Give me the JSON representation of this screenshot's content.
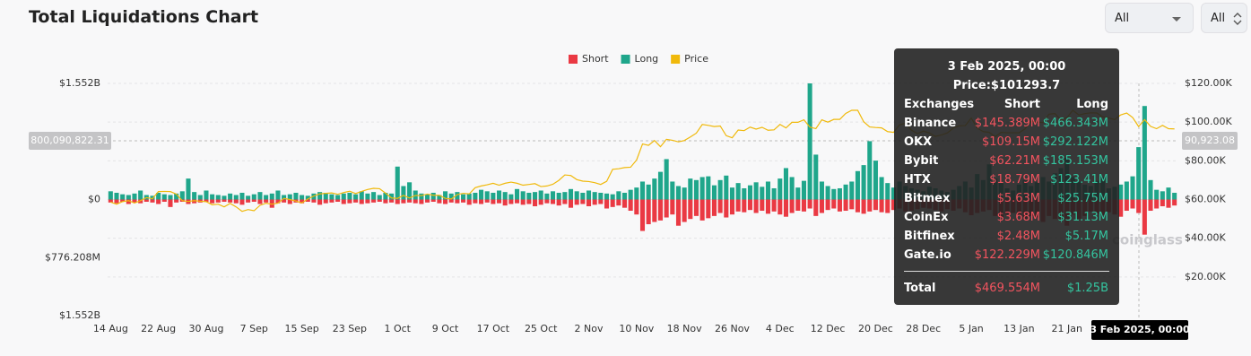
{
  "header": {
    "title": "Total Liquidations Chart",
    "filters": [
      "All",
      "All"
    ]
  },
  "chart_data": {
    "type": "bar",
    "categories": [
      "14 Aug",
      null,
      null,
      null,
      null,
      null,
      null,
      null,
      "22 Aug",
      null,
      null,
      null,
      null,
      null,
      null,
      null,
      "30 Aug",
      null,
      null,
      null,
      null,
      null,
      null,
      null,
      "7 Sep",
      null,
      null,
      null,
      null,
      null,
      null,
      null,
      "15 Sep",
      null,
      null,
      null,
      null,
      null,
      null,
      null,
      "23 Sep",
      null,
      null,
      null,
      null,
      null,
      null,
      null,
      "1 Oct",
      null,
      null,
      null,
      null,
      null,
      null,
      null,
      "9 Oct",
      null,
      null,
      null,
      null,
      null,
      null,
      null,
      "17 Oct",
      null,
      null,
      null,
      null,
      null,
      null,
      null,
      "25 Oct",
      null,
      null,
      null,
      null,
      null,
      null,
      null,
      "2 Nov",
      null,
      null,
      null,
      null,
      null,
      null,
      null,
      "10 Nov",
      null,
      null,
      null,
      null,
      null,
      null,
      null,
      "18 Nov",
      null,
      null,
      null,
      null,
      null,
      null,
      null,
      "26 Nov",
      null,
      null,
      null,
      null,
      null,
      null,
      null,
      "4 Dec",
      null,
      null,
      null,
      null,
      null,
      null,
      null,
      "12 Dec",
      null,
      null,
      null,
      null,
      null,
      null,
      null,
      "20 Dec",
      null,
      null,
      null,
      null,
      null,
      null,
      null,
      "28 Dec",
      null,
      null,
      null,
      null,
      null,
      null,
      null,
      "5 Jan",
      null,
      null,
      null,
      null,
      null,
      null,
      null,
      "13 Jan",
      null,
      null,
      null,
      null,
      null,
      null,
      null,
      "21 Jan",
      null,
      null,
      null,
      null,
      null,
      null,
      null,
      null,
      null,
      null,
      null,
      null,
      null,
      null,
      null,
      null,
      null,
      null
    ],
    "series": [
      {
        "name": "Short",
        "color": "#ea3943",
        "type": "bar",
        "values": [
          -40000000.0,
          -50000000.0,
          -30000000.0,
          -60000000.0,
          -40000000.0,
          -50000000.0,
          -30000000.0,
          -40000000.0,
          -60000000.0,
          -30000000.0,
          -100000000.0,
          -40000000.0,
          -30000000.0,
          -60000000.0,
          -50000000.0,
          -40000000.0,
          -30000000.0,
          -50000000.0,
          -40000000.0,
          -30000000.0,
          -40000000.0,
          -50000000.0,
          -70000000.0,
          -40000000.0,
          -30000000.0,
          -60000000.0,
          -40000000.0,
          -110000000.0,
          -50000000.0,
          -40000000.0,
          -60000000.0,
          -40000000.0,
          -50000000.0,
          -30000000.0,
          -40000000.0,
          -70000000.0,
          -50000000.0,
          -40000000.0,
          -30000000.0,
          -60000000.0,
          -50000000.0,
          -40000000.0,
          -60000000.0,
          -50000000.0,
          -40000000.0,
          -30000000.0,
          -50000000.0,
          -40000000.0,
          -60000000.0,
          -50000000.0,
          -40000000.0,
          -50000000.0,
          -60000000.0,
          -40000000.0,
          -30000000.0,
          -50000000.0,
          -60000000.0,
          -40000000.0,
          -50000000.0,
          -40000000.0,
          -70000000.0,
          -50000000.0,
          -60000000.0,
          -40000000.0,
          -60000000.0,
          -50000000.0,
          -80000000.0,
          -60000000.0,
          -50000000.0,
          -70000000.0,
          -60000000.0,
          -90000000.0,
          -70000000.0,
          -50000000.0,
          -60000000.0,
          -80000000.0,
          -60000000.0,
          -110000000.0,
          -70000000.0,
          -60000000.0,
          -90000000.0,
          -70000000.0,
          -60000000.0,
          -120000000.0,
          -100000000.0,
          -80000000.0,
          -110000000.0,
          -150000000.0,
          -200000000.0,
          -420000000.0,
          -330000000.0,
          -300000000.0,
          -280000000.0,
          -240000000.0,
          -200000000.0,
          -350000000.0,
          -300000000.0,
          -260000000.0,
          -220000000.0,
          -280000000.0,
          -250000000.0,
          -220000000.0,
          -180000000.0,
          -240000000.0,
          -200000000.0,
          -160000000.0,
          -170000000.0,
          -140000000.0,
          -180000000.0,
          -150000000.0,
          -190000000.0,
          -160000000.0,
          -200000000.0,
          -230000000.0,
          -180000000.0,
          -150000000.0,
          -160000000.0,
          -120000000.0,
          -220000000.0,
          -180000000.0,
          -140000000.0,
          -120000000.0,
          -160000000.0,
          -150000000.0,
          -130000000.0,
          -170000000.0,
          -190000000.0,
          -160000000.0,
          -140000000.0,
          -170000000.0,
          -180000000.0,
          -140000000.0,
          -120000000.0,
          -160000000.0,
          -150000000.0,
          -130000000.0,
          -110000000.0,
          -120000000.0,
          -140000000.0,
          -160000000.0,
          -130000000.0,
          -150000000.0,
          -120000000.0,
          -170000000.0,
          -210000000.0,
          -180000000.0,
          -160000000.0,
          -140000000.0,
          -220000000.0,
          -240000000.0,
          -200000000.0,
          -180000000.0,
          -210000000.0,
          -260000000.0,
          -220000000.0,
          -240000000.0,
          -300000000.0,
          -220000000.0,
          -260000000.0,
          -280000000.0,
          -350000000.0,
          -200000000.0,
          -260000000.0,
          -220000000.0,
          -160000000.0,
          -190000000.0,
          -210000000.0,
          -170000000.0,
          -200000000.0,
          -230000000.0,
          -150000000.0,
          -120000000.0,
          -180000000.0,
          -469554000.0,
          -150000000.0,
          -120000000.0,
          -90000000.0,
          -110000000.0,
          -80000000.0
        ]
      },
      {
        "name": "Long",
        "color": "#1fa68b",
        "type": "bar",
        "values": [
          110000000.0,
          90000000.0,
          70000000.0,
          60000000.0,
          80000000.0,
          120000000.0,
          60000000.0,
          50000000.0,
          90000000.0,
          70000000.0,
          60000000.0,
          80000000.0,
          110000000.0,
          280000000.0,
          100000000.0,
          60000000.0,
          120000000.0,
          70000000.0,
          60000000.0,
          50000000.0,
          80000000.0,
          60000000.0,
          90000000.0,
          50000000.0,
          70000000.0,
          100000000.0,
          60000000.0,
          80000000.0,
          120000000.0,
          60000000.0,
          70000000.0,
          90000000.0,
          60000000.0,
          50000000.0,
          80000000.0,
          100000000.0,
          90000000.0,
          70000000.0,
          60000000.0,
          80000000.0,
          90000000.0,
          70000000.0,
          110000000.0,
          80000000.0,
          100000000.0,
          60000000.0,
          90000000.0,
          80000000.0,
          440000000.0,
          180000000.0,
          230000000.0,
          120000000.0,
          80000000.0,
          70000000.0,
          90000000.0,
          60000000.0,
          110000000.0,
          80000000.0,
          100000000.0,
          70000000.0,
          80000000.0,
          90000000.0,
          130000000.0,
          110000000.0,
          90000000.0,
          120000000.0,
          100000000.0,
          70000000.0,
          140000000.0,
          110000000.0,
          90000000.0,
          100000000.0,
          120000000.0,
          80000000.0,
          110000000.0,
          90000000.0,
          100000000.0,
          140000000.0,
          110000000.0,
          90000000.0,
          120000000.0,
          100000000.0,
          90000000.0,
          80000000.0,
          70000000.0,
          110000000.0,
          90000000.0,
          130000000.0,
          160000000.0,
          240000000.0,
          200000000.0,
          280000000.0,
          370000000.0,
          540000000.0,
          240000000.0,
          180000000.0,
          160000000.0,
          280000000.0,
          260000000.0,
          300000000.0,
          310000000.0,
          190000000.0,
          260000000.0,
          320000000.0,
          160000000.0,
          220000000.0,
          150000000.0,
          190000000.0,
          230000000.0,
          170000000.0,
          240000000.0,
          150000000.0,
          280000000.0,
          420000000.0,
          300000000.0,
          160000000.0,
          250000000.0,
          1552000000.0,
          600000000.0,
          240000000.0,
          180000000.0,
          140000000.0,
          150000000.0,
          200000000.0,
          240000000.0,
          380000000.0,
          460000000.0,
          780000000.0,
          520000000.0,
          300000000.0,
          220000000.0,
          160000000.0,
          240000000.0,
          180000000.0,
          150000000.0,
          130000000.0,
          110000000.0,
          170000000.0,
          150000000.0,
          120000000.0,
          100000000.0,
          130000000.0,
          180000000.0,
          240000000.0,
          160000000.0,
          340000000.0,
          260000000.0,
          470000000.0,
          280000000.0,
          220000000.0,
          150000000.0,
          120000000.0,
          200000000.0,
          260000000.0,
          180000000.0,
          230000000.0,
          300000000.0,
          240000000.0,
          350000000.0,
          420000000.0,
          560000000.0,
          300000000.0,
          240000000.0,
          200000000.0,
          180000000.0,
          250000000.0,
          300000000.0,
          150000000.0,
          170000000.0,
          200000000.0,
          240000000.0,
          310000000.0,
          700000000.0,
          1250000000.0,
          260000000.0,
          130000000.0,
          110000000.0,
          160000000.0,
          90000000.0
        ]
      },
      {
        "name": "Price",
        "color": "#f0b90b",
        "type": "line",
        "axis": "y2",
        "values": [
          58700,
          57600,
          58900,
          59400,
          58200,
          59400,
          61000,
          60400,
          64100,
          64200,
          64100,
          62800,
          59400,
          59000,
          59400,
          59100,
          58900,
          57300,
          57600,
          56200,
          58000,
          56200,
          53900,
          54800,
          54200,
          57000,
          58100,
          57600,
          58100,
          60600,
          60000,
          59200,
          58200,
          60300,
          61800,
          62900,
          63200,
          63400,
          62700,
          63600,
          64300,
          63100,
          64200,
          65200,
          65800,
          65600,
          63300,
          60800,
          60600,
          62100,
          60800,
          62100,
          62000,
          62800,
          62200,
          62200,
          60600,
          60300,
          62500,
          63200,
          62900,
          66100,
          67000,
          67600,
          68400,
          67400,
          68400,
          69000,
          68400,
          67400,
          67800,
          68200,
          66700,
          67000,
          67900,
          69900,
          72700,
          72400,
          70300,
          69500,
          69300,
          68700,
          67800,
          69400,
          75600,
          75900,
          76500,
          76700,
          80400,
          88700,
          88000,
          90500,
          87300,
          91100,
          90600,
          89800,
          90500,
          92300,
          94300,
          98800,
          98300,
          97700,
          98000,
          93000,
          91900,
          95900,
          95600,
          97400,
          96400,
          97300,
          95800,
          96000,
          98800,
          97000,
          99900,
          99900,
          101200,
          97400,
          96600,
          101200,
          100000,
          101400,
          101400,
          104500,
          106100,
          106100,
          100200,
          97500,
          97200,
          97000,
          95100,
          94700,
          98600,
          99400,
          95800,
          94100,
          95300,
          94400,
          92600,
          93400,
          94400,
          96900,
          98100,
          98200,
          102100,
          96900,
          95100,
          94700,
          92500,
          94700,
          94500,
          94500,
          94500,
          96500,
          100500,
          100000,
          99800,
          104100,
          104400,
          101100,
          102300,
          106100,
          103700,
          104400,
          104800,
          104700,
          102700,
          102100,
          101300,
          103700,
          104700,
          102400,
          97700,
          101293.7,
          97800,
          96600,
          98300,
          96600,
          96500
        ]
      }
    ],
    "ylim": [
      -1552000000,
      1552000000
    ],
    "yticks": [
      {
        "value": 1552000000,
        "label": "$1.552B"
      },
      {
        "value": 0,
        "label": "$0"
      },
      {
        "value": -776208000,
        "label": "$776.208M"
      },
      {
        "value": -1552000000,
        "label": "$1.552B"
      }
    ],
    "y2lim": [
      0,
      120000
    ],
    "y2ticks": [
      {
        "value": 20000,
        "label": "$20.00K"
      },
      {
        "value": 40000,
        "label": "$40.00K"
      },
      {
        "value": 60000,
        "label": "$60.00K"
      },
      {
        "value": 80000,
        "label": "$80.00K"
      },
      {
        "value": 100000,
        "label": "$100.00K"
      },
      {
        "value": 120000,
        "label": "$120.00K"
      }
    ],
    "grid": true,
    "legend": "top",
    "watermark": "coinglass",
    "crosshair": {
      "x_label": "3 Feb 2025, 00:00",
      "y_label": "800,090,822.31",
      "y2_label": "90,923.08"
    },
    "tooltip": {
      "date": "3 Feb 2025, 00:00",
      "price": "Price:$101293.7",
      "headers": [
        "Exchanges",
        "Short",
        "Long"
      ],
      "rows": [
        [
          "Binance",
          "$145.389M",
          "$466.343M"
        ],
        [
          "OKX",
          "$109.15M",
          "$292.122M"
        ],
        [
          "Bybit",
          "$62.21M",
          "$185.153M"
        ],
        [
          "HTX",
          "$18.79M",
          "$123.41M"
        ],
        [
          "Bitmex",
          "$5.63M",
          "$25.75M"
        ],
        [
          "CoinEx",
          "$3.68M",
          "$31.13M"
        ],
        [
          "Bitfinex",
          "$2.48M",
          "$5.17M"
        ],
        [
          "Gate.io",
          "$122.229M",
          "$120.846M"
        ]
      ],
      "total": [
        "Total",
        "$469.554M",
        "$1.25B"
      ]
    }
  }
}
